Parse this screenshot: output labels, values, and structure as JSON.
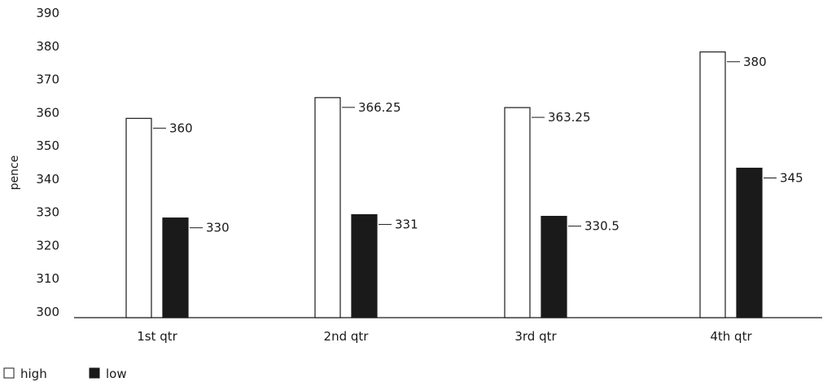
{
  "chart_data": {
    "type": "bar",
    "ylabel": "pence",
    "ylim": [
      300,
      390
    ],
    "y_ticks": [
      "300",
      "310",
      "320",
      "330",
      "340",
      "350",
      "360",
      "370",
      "380",
      "390"
    ],
    "categories": [
      "1st qtr",
      "2nd qtr",
      "3rd qtr",
      "4th qtr"
    ],
    "series": [
      {
        "name": "high",
        "values": [
          360,
          366.25,
          363.25,
          380
        ],
        "labels": [
          "360",
          "366.25",
          "363.25",
          "380"
        ],
        "color": "#ffffff"
      },
      {
        "name": "low",
        "values": [
          330,
          331,
          330.5,
          345
        ],
        "labels": [
          "330",
          "331",
          "330.5",
          "345"
        ],
        "color": "#1a1a1a"
      }
    ],
    "grid": false,
    "legend_position": "bottom-left"
  }
}
